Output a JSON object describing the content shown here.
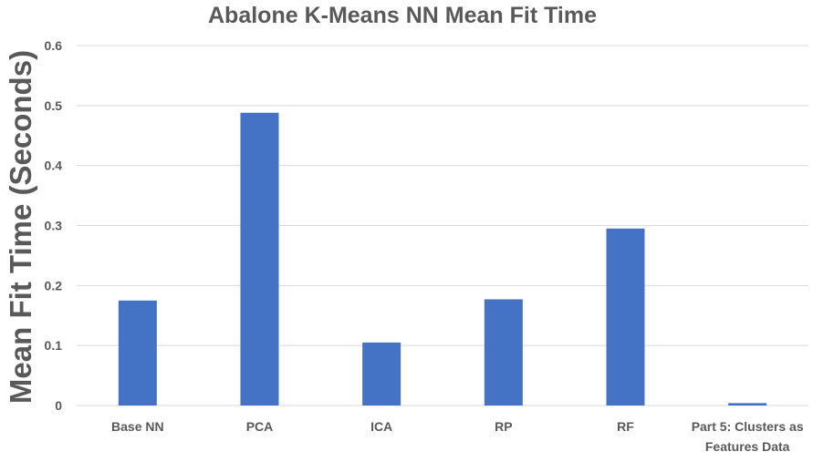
{
  "chart_data": {
    "type": "bar",
    "title": "Abalone K-Means NN Mean Fit Time",
    "xlabel": "",
    "ylabel": "Mean Fit Time (Seconds)",
    "categories": [
      "Base NN",
      "PCA",
      "ICA",
      "RP",
      "RF",
      "Part 5: Clusters as Features Data"
    ],
    "category_lines": [
      [
        "Base NN"
      ],
      [
        "PCA"
      ],
      [
        "ICA"
      ],
      [
        "RP"
      ],
      [
        "RF"
      ],
      [
        "Part 5: Clusters as",
        "Features Data"
      ]
    ],
    "values": [
      0.175,
      0.488,
      0.105,
      0.177,
      0.295,
      0.004
    ],
    "ylim": [
      0,
      0.6
    ],
    "yticks": [
      "0",
      "0.1",
      "0.2",
      "0.3",
      "0.4",
      "0.5",
      "0.6"
    ],
    "ytick_values": [
      0,
      0.1,
      0.2,
      0.3,
      0.4,
      0.5,
      0.6
    ],
    "grid": true,
    "legend": "none",
    "bar_color": "#4472C4",
    "grid_color": "#D9D9D9",
    "text_color": "#595959"
  }
}
